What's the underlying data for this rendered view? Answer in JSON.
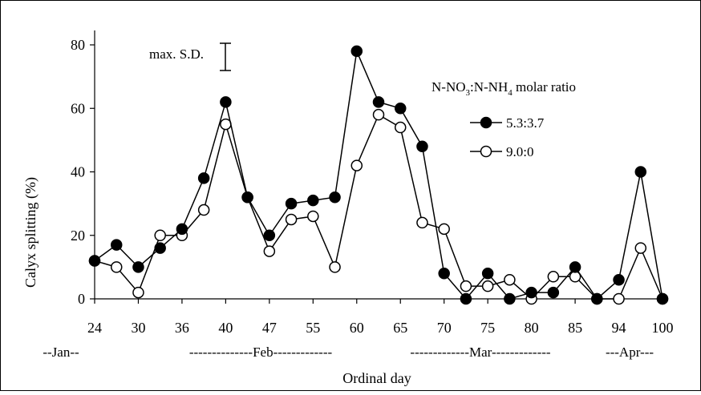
{
  "chart_data": {
    "type": "line",
    "xlabel": "Ordinal day",
    "ylabel": "Calyx splitting (%)",
    "ylim": [
      0,
      85
    ],
    "yticks": [
      0,
      20,
      40,
      60,
      80
    ],
    "xtick_labels": [
      "24",
      "30",
      "36",
      "40",
      "47",
      "55",
      "60",
      "65",
      "70",
      "75",
      "80",
      "85",
      "94",
      "100"
    ],
    "months": [
      "--Jan--",
      "--------------Feb-------------",
      "-------------Mar-------------",
      "---Apr---"
    ],
    "sd_label": "max. S.D.",
    "legend_title": "N-NO3:N-NH4 molar ratio",
    "legend_title_parts": {
      "a": "N-NO",
      "a_sub": "3",
      "b": ":N-NH",
      "b_sub": "4",
      "c": " molar ratio"
    },
    "legend_position": "right",
    "points_per_tick": 2,
    "series": [
      {
        "name": "5.3:3.7",
        "marker": "filled",
        "values": [
          12,
          17,
          10,
          16,
          22,
          38,
          62,
          32,
          20,
          30,
          31,
          32,
          78,
          62,
          60,
          48,
          8,
          0,
          8,
          0,
          2,
          2,
          10,
          0,
          6,
          40,
          0
        ]
      },
      {
        "name": "9.0:0",
        "marker": "open",
        "values": [
          12,
          10,
          2,
          20,
          20,
          28,
          55,
          32,
          15,
          25,
          26,
          10,
          42,
          58,
          54,
          24,
          22,
          4,
          4,
          6,
          0,
          7,
          7,
          0,
          0,
          16,
          0
        ]
      }
    ]
  }
}
